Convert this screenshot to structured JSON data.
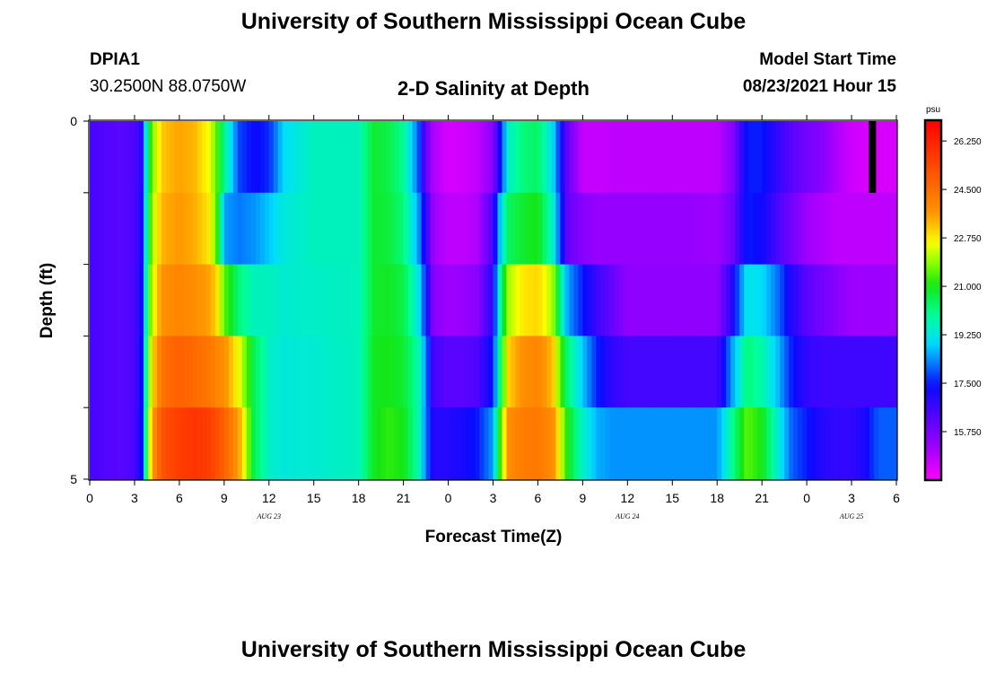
{
  "header": {
    "title_top": "University of Southern Mississippi Ocean Cube",
    "station": "DPIA1",
    "coords": "30.2500N  88.0750W",
    "subtitle": "2-D Salinity at Depth",
    "model_label": "Model Start Time",
    "model_time": "08/23/2021 Hour 15",
    "title_bottom": "University of Southern Mississippi Ocean Cube"
  },
  "chart_data": {
    "type": "heatmap",
    "title": "2-D Salinity at Depth",
    "xlabel": "Forecast Time(Z)",
    "ylabel": "Depth (ft)",
    "x_range_hours": [
      0,
      54
    ],
    "x_ticks": [
      {
        "h": 0,
        "label": "0"
      },
      {
        "h": 3,
        "label": "3"
      },
      {
        "h": 6,
        "label": "6"
      },
      {
        "h": 9,
        "label": "9"
      },
      {
        "h": 12,
        "label": "12"
      },
      {
        "h": 15,
        "label": "15"
      },
      {
        "h": 18,
        "label": "18"
      },
      {
        "h": 21,
        "label": "21"
      },
      {
        "h": 24,
        "label": "0"
      },
      {
        "h": 27,
        "label": "3"
      },
      {
        "h": 30,
        "label": "6"
      },
      {
        "h": 33,
        "label": "9"
      },
      {
        "h": 36,
        "label": "12"
      },
      {
        "h": 39,
        "label": "15"
      },
      {
        "h": 42,
        "label": "18"
      },
      {
        "h": 45,
        "label": "21"
      },
      {
        "h": 48,
        "label": "0"
      },
      {
        "h": 51,
        "label": "3"
      },
      {
        "h": 54,
        "label": "6"
      }
    ],
    "date_labels": [
      {
        "h": 12,
        "label": "AUG 23"
      },
      {
        "h": 36,
        "label": "AUG 24"
      },
      {
        "h": 51,
        "label": "AUG 25"
      }
    ],
    "y_range": [
      0,
      5
    ],
    "y_ticks": [
      {
        "v": 0,
        "label": "0"
      },
      {
        "v": 5,
        "label": "5"
      }
    ],
    "depth_levels": 5,
    "colorbar": {
      "unit": "psu",
      "range": [
        14.0,
        27.0
      ],
      "ticks": [
        26.25,
        24.5,
        22.75,
        21.0,
        19.25,
        17.5,
        15.75
      ],
      "tick_labels": [
        "26.250",
        "24.500",
        "22.750",
        "21.000",
        "19.250",
        "17.500",
        "15.750"
      ]
    },
    "series": [
      {
        "name": "depth_0.5ft",
        "times": [
          0,
          1,
          2,
          3,
          3.5,
          4,
          4.5,
          5,
          6,
          7,
          8,
          8.5,
          9,
          10,
          11,
          12,
          13,
          15,
          18,
          19,
          20,
          21,
          22,
          22.5,
          23,
          24,
          25,
          26,
          27,
          27.5,
          28,
          29,
          30,
          31,
          31.5,
          32,
          33,
          34,
          35,
          36,
          38,
          40,
          42,
          43,
          44,
          45,
          46,
          47,
          48,
          49,
          50,
          51,
          52,
          52.5,
          53,
          54
        ],
        "values": [
          16.5,
          16.3,
          16.2,
          16.4,
          17.0,
          21.0,
          22.5,
          23.2,
          23.5,
          23.3,
          22.5,
          21.5,
          20.0,
          17.8,
          17.3,
          17.6,
          19.0,
          19.6,
          19.6,
          20.8,
          20.6,
          20.0,
          18.0,
          16.0,
          15.0,
          14.5,
          14.6,
          14.8,
          15.5,
          17.5,
          19.5,
          20.2,
          20.4,
          19.0,
          17.5,
          16.0,
          14.7,
          14.7,
          14.8,
          14.8,
          14.8,
          14.8,
          14.8,
          15.5,
          17.5,
          17.5,
          16.8,
          16.2,
          15.8,
          15.5,
          15.0,
          14.6,
          14.5,
          14.5,
          14.5,
          14.5
        ]
      },
      {
        "name": "depth_1.5ft",
        "times": [
          0,
          1,
          2,
          3,
          3.5,
          4,
          4.5,
          5,
          6,
          7,
          8,
          8.5,
          9,
          10,
          11,
          12,
          13,
          15,
          18,
          19,
          20,
          21,
          22,
          22.5,
          23,
          24,
          25,
          26,
          27,
          27.5,
          28,
          29,
          30,
          31,
          31.5,
          32,
          33,
          34,
          35,
          36,
          38,
          40,
          42,
          43,
          44,
          45,
          46,
          47,
          48,
          49,
          50,
          51,
          52,
          52.5,
          53,
          54
        ],
        "values": [
          16.5,
          16.3,
          16.2,
          16.4,
          17.2,
          21.2,
          22.8,
          23.4,
          23.6,
          23.4,
          22.8,
          21.5,
          18.5,
          18.2,
          18.4,
          18.8,
          19.3,
          19.6,
          19.6,
          20.8,
          20.7,
          20.2,
          18.5,
          16.8,
          15.2,
          14.8,
          14.8,
          15.0,
          16.5,
          19.0,
          20.4,
          20.8,
          21.0,
          19.5,
          17.8,
          16.0,
          15.5,
          15.3,
          15.3,
          15.3,
          15.3,
          15.3,
          15.2,
          15.8,
          17.5,
          17.3,
          16.5,
          15.8,
          15.2,
          15.0,
          14.8,
          14.8,
          14.8,
          14.8,
          14.8,
          14.8
        ]
      },
      {
        "name": "depth_2.5ft",
        "times": [
          0,
          1,
          2,
          3,
          3.5,
          4,
          4.5,
          5,
          6,
          7,
          8,
          8.5,
          9,
          10,
          11,
          12,
          13,
          15,
          18,
          19,
          20,
          21,
          22,
          22.5,
          23,
          24,
          25,
          26,
          27,
          27.5,
          28,
          29,
          30,
          31,
          31.5,
          32,
          33,
          34,
          35,
          36,
          38,
          40,
          42,
          43,
          44,
          45,
          46,
          47,
          48,
          49,
          50,
          51,
          52,
          52.5,
          53,
          54
        ],
        "values": [
          16.5,
          16.3,
          16.2,
          16.4,
          17.3,
          21.5,
          23.2,
          23.8,
          24.0,
          23.8,
          23.5,
          23.0,
          21.5,
          20.2,
          19.6,
          19.6,
          19.4,
          19.5,
          19.6,
          20.8,
          20.9,
          20.6,
          19.2,
          17.5,
          15.5,
          15.2,
          15.3,
          15.5,
          17.0,
          20.0,
          22.0,
          22.8,
          23.0,
          22.0,
          20.0,
          18.5,
          17.5,
          16.6,
          16.0,
          15.4,
          15.4,
          15.4,
          15.4,
          17.0,
          19.2,
          19.0,
          18.2,
          17.0,
          16.2,
          15.8,
          15.5,
          15.2,
          15.2,
          15.2,
          15.2,
          15.2
        ]
      },
      {
        "name": "depth_3.5ft",
        "times": [
          0,
          1,
          2,
          3,
          3.5,
          4,
          4.5,
          5,
          6,
          7,
          8,
          8.5,
          9,
          10,
          11,
          12,
          13,
          15,
          18,
          19,
          20,
          21,
          22,
          22.5,
          23,
          24,
          25,
          26,
          27,
          27.5,
          28,
          29,
          30,
          31,
          31.5,
          32,
          33,
          34,
          35,
          36,
          38,
          40,
          42,
          43,
          44,
          45,
          46,
          47,
          48,
          49,
          50,
          51,
          52,
          52.5,
          53,
          54
        ],
        "values": [
          16.5,
          16.3,
          16.2,
          16.4,
          17.4,
          22.0,
          23.8,
          24.5,
          24.8,
          24.6,
          24.3,
          24.0,
          23.8,
          22.5,
          20.5,
          19.5,
          19.3,
          19.4,
          19.6,
          20.9,
          21.0,
          20.8,
          19.8,
          18.3,
          16.5,
          16.2,
          16.2,
          16.4,
          17.5,
          20.5,
          23.0,
          23.8,
          24.0,
          23.2,
          21.5,
          20.2,
          18.8,
          17.5,
          16.8,
          16.5,
          16.5,
          16.5,
          16.5,
          18.5,
          20.2,
          19.8,
          18.8,
          17.5,
          16.8,
          16.6,
          16.6,
          16.6,
          16.6,
          16.6,
          16.6,
          16.6
        ]
      },
      {
        "name": "depth_4.5ft",
        "times": [
          0,
          1,
          2,
          3,
          3.5,
          4,
          4.5,
          5,
          6,
          7,
          8,
          8.5,
          9,
          10,
          11,
          12,
          13,
          15,
          18,
          19,
          20,
          21,
          22,
          22.5,
          23,
          24,
          25,
          26,
          27,
          27.5,
          28,
          29,
          30,
          31,
          31.5,
          32,
          33,
          34,
          35,
          36,
          38,
          40,
          42,
          43,
          44,
          45,
          46,
          47,
          48,
          49,
          50,
          51,
          52,
          52.5,
          53,
          54
        ],
        "values": [
          16.5,
          16.3,
          16.2,
          16.4,
          17.5,
          22.5,
          24.5,
          25.2,
          25.6,
          25.8,
          25.6,
          25.2,
          24.8,
          23.5,
          20.5,
          19.5,
          19.3,
          19.4,
          19.6,
          20.9,
          21.2,
          21.0,
          19.8,
          18.2,
          17.0,
          17.0,
          17.2,
          17.5,
          18.5,
          21.5,
          23.8,
          24.2,
          24.3,
          23.8,
          22.5,
          21.0,
          19.5,
          18.6,
          18.4,
          18.4,
          18.4,
          18.4,
          18.4,
          20.0,
          21.5,
          21.0,
          19.5,
          18.0,
          17.5,
          17.0,
          16.8,
          16.8,
          17.2,
          17.8,
          18.0,
          18.0
        ]
      }
    ],
    "annotations": [
      {
        "type": "marker-bar",
        "hour": 52.4,
        "depth_range": [
          0,
          1
        ],
        "color": "#000000"
      }
    ]
  }
}
